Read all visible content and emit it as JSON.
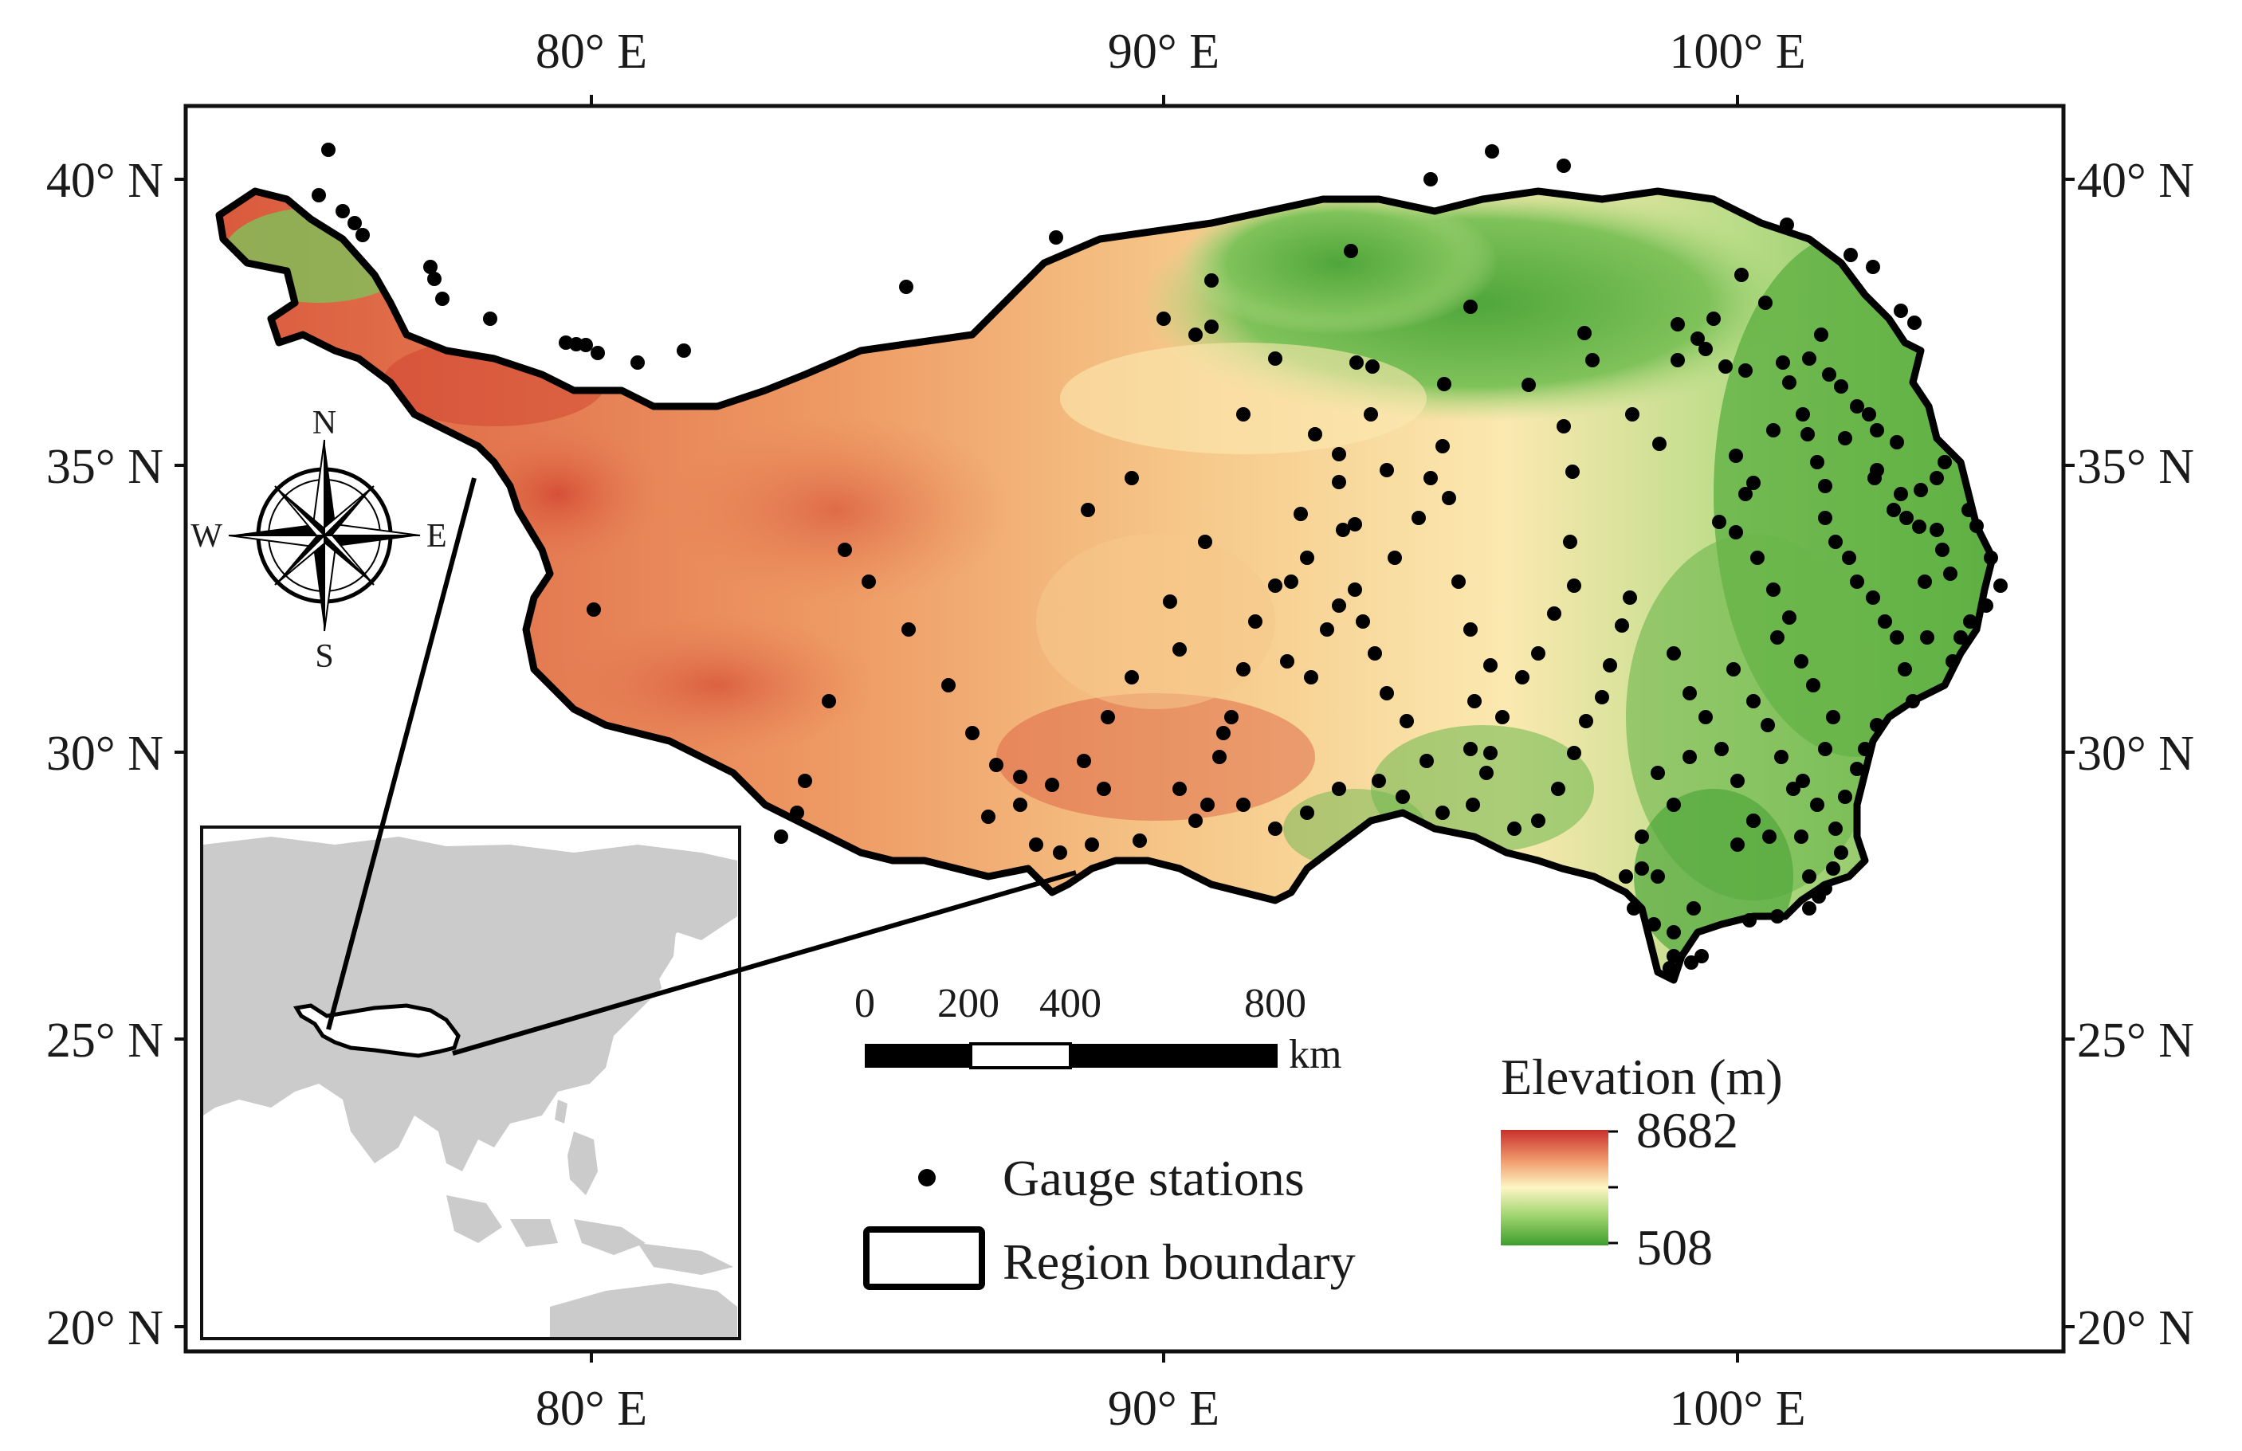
{
  "map": {
    "lon_ticks": [
      "80° E",
      "90° E",
      "100° E"
    ],
    "lat_ticks": [
      "40° N",
      "35° N",
      "30° N",
      "25° N",
      "20° N"
    ]
  },
  "compass": {
    "north": "N",
    "south": "S",
    "east": "E",
    "west": "W"
  },
  "scale_bar": {
    "labels": [
      "0",
      "200",
      "400",
      "800"
    ],
    "unit": "km"
  },
  "legend": {
    "gauge_label": "Gauge stations",
    "boundary_label": "Region boundary"
  },
  "elevation_legend": {
    "title": "Elevation (m)",
    "max": "8682",
    "min": "508",
    "colors": [
      "#c9302c",
      "#f2a071",
      "#fdf6c4",
      "#9dd36d",
      "#3e9e2e"
    ]
  },
  "colors": {
    "frame": "#111111",
    "station": "#000000",
    "land_inset": "#cbcbcb",
    "low_elevation": "#3e9e2e",
    "mid_elevation": "#fdf6c4",
    "high_elevation": "#c9302c"
  }
}
